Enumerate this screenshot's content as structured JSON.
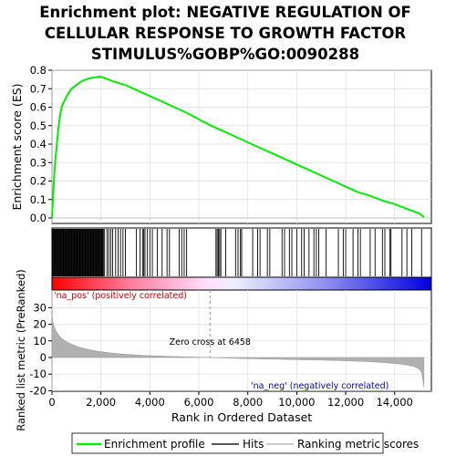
{
  "chart_data": {
    "type": "line",
    "title": [
      "Enrichment plot: NEGATIVE REGULATION OF",
      "CELLULAR RESPONSE TO GROWTH FACTOR",
      "STIMULUS%GOBP%GO:0090288"
    ],
    "xlabel": "Rank in Ordered Dataset",
    "ylabel_top": "Enrichment score (ES)",
    "ylabel_bottom": "Ranked list metric (PreRanked)",
    "xlim": [
      0,
      15500
    ],
    "es_ylim": [
      0,
      0.8
    ],
    "metric_ylim": [
      -20,
      30
    ],
    "x_ticks": [
      0,
      2000,
      4000,
      6000,
      8000,
      10000,
      12000,
      14000
    ],
    "x_tick_labels": [
      "0",
      "2,000",
      "4,000",
      "6,000",
      "8,000",
      "10,000",
      "12,000",
      "14,000"
    ],
    "es_ticks": [
      0.0,
      0.1,
      0.2,
      0.3,
      0.4,
      0.5,
      0.6,
      0.7,
      0.8
    ],
    "es_tick_labels": [
      "0.0",
      "0.1",
      "0.2",
      "0.3",
      "0.4",
      "0.5",
      "0.6",
      "0.7",
      "0.8"
    ],
    "metric_ticks": [
      -20,
      -10,
      0,
      10,
      20,
      30
    ],
    "metric_tick_labels": [
      "-20",
      "-10",
      "0",
      "10",
      "20",
      "30"
    ],
    "enrichment_profile": {
      "name": "Enrichment profile",
      "color": "#00ee00",
      "x": [
        0,
        50,
        100,
        150,
        200,
        250,
        300,
        350,
        400,
        450,
        500,
        600,
        700,
        800,
        900,
        1000,
        1100,
        1200,
        1300,
        1400,
        1500,
        1600,
        1700,
        1800,
        1900,
        2000,
        2200,
        2500,
        3000,
        3500,
        4000,
        4500,
        5000,
        5500,
        6000,
        6500,
        7000,
        7500,
        8000,
        8500,
        9000,
        9500,
        10000,
        10500,
        11000,
        11500,
        12000,
        12500,
        13000,
        13500,
        14000,
        14500,
        15000,
        15200
      ],
      "y": [
        0.0,
        0.12,
        0.25,
        0.33,
        0.4,
        0.47,
        0.53,
        0.57,
        0.6,
        0.62,
        0.63,
        0.66,
        0.68,
        0.7,
        0.71,
        0.72,
        0.73,
        0.74,
        0.745,
        0.75,
        0.755,
        0.758,
        0.76,
        0.762,
        0.765,
        0.765,
        0.755,
        0.74,
        0.72,
        0.69,
        0.66,
        0.63,
        0.6,
        0.57,
        0.535,
        0.5,
        0.47,
        0.44,
        0.41,
        0.38,
        0.35,
        0.32,
        0.29,
        0.26,
        0.23,
        0.2,
        0.17,
        0.14,
        0.12,
        0.095,
        0.075,
        0.05,
        0.025,
        0.005
      ]
    },
    "hits_dense_ranges": [
      [
        0,
        2100
      ]
    ],
    "hits": [
      2150,
      2250,
      2320,
      2400,
      2480,
      2600,
      2700,
      2800,
      2900,
      3000,
      3450,
      3600,
      3700,
      3750,
      3800,
      3900,
      4000,
      4100,
      4300,
      4500,
      4700,
      4800,
      5200,
      5300,
      5400,
      5500,
      6700,
      6750,
      6800,
      6850,
      6900,
      7100,
      7500,
      7600,
      7700,
      7750,
      8200,
      8400,
      8500,
      8800,
      8900,
      9400,
      9500,
      9700,
      9800,
      10000,
      10200,
      10300,
      10500,
      10700,
      10800,
      10900,
      11200,
      11700,
      11900,
      12000,
      12300,
      12500,
      12600,
      13000,
      13200,
      13500,
      13600,
      13800,
      13850,
      14300,
      14500,
      14700,
      15100
    ],
    "metric_x": [
      0,
      30,
      80,
      150,
      250,
      400,
      600,
      800,
      1000,
      1300,
      1600,
      2000,
      2500,
      3000,
      3500,
      4000,
      5000,
      6000,
      6458,
      7000,
      8000,
      9000,
      10000,
      11000,
      12000,
      13000,
      13500,
      14000,
      14500,
      14800,
      15000,
      15100,
      15200
    ],
    "metric_y": [
      28,
      22,
      19,
      16.5,
      14,
      11.5,
      9.5,
      8,
      6.8,
      5.5,
      4.5,
      3.5,
      2.6,
      2,
      1.5,
      1.1,
      0.6,
      0.2,
      0,
      -0.3,
      -0.7,
      -1.0,
      -1.3,
      -1.6,
      -2.0,
      -2.6,
      -3.0,
      -3.6,
      -4.5,
      -5.5,
      -7,
      -9,
      -18
    ],
    "zero_cross_label": "Zero cross at 6458",
    "zero_cross_x": 6458,
    "pos_label": "'na_pos' (positively correlated)",
    "neg_label": "'na_neg' (negatively correlated)",
    "legend": [
      {
        "label": "Enrichment profile",
        "color": "#00ee00"
      },
      {
        "label": "Hits",
        "color": "#555555"
      },
      {
        "label": "Ranking metric scores",
        "color": "#cccccc"
      }
    ],
    "colors": {
      "pos_label": "#cc0000",
      "neg_label": "#0000cc",
      "metric_fill": "#b0b0b0",
      "grid": "#dddddd"
    }
  }
}
